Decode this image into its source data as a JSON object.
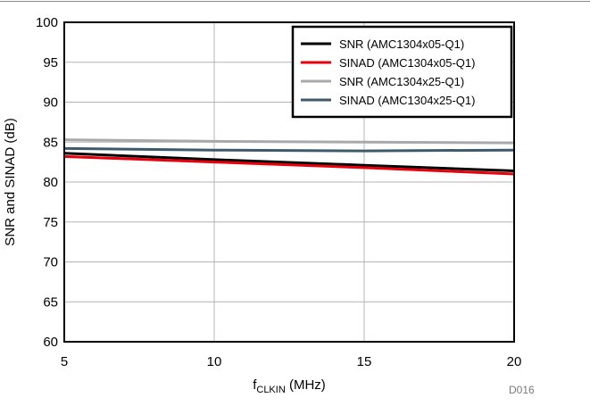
{
  "chart_data": {
    "type": "line",
    "xlabel_main": "f",
    "xlabel_sub": "CLKIN",
    "xlabel_unit": " (MHz)",
    "ylabel": "SNR and SINAD (dB)",
    "xlim": [
      5,
      20
    ],
    "ylim": [
      60,
      100
    ],
    "x_ticks": [
      5,
      10,
      15,
      20
    ],
    "y_ticks": [
      60,
      65,
      70,
      75,
      80,
      85,
      90,
      95,
      100
    ],
    "x_tick_labels": [
      "5",
      "10",
      "15",
      "20"
    ],
    "y_tick_labels": [
      "60",
      "65",
      "70",
      "75",
      "80",
      "85",
      "90",
      "95",
      "100"
    ],
    "grid": true,
    "legend_position": "top-right",
    "figure_id": "D016",
    "series": [
      {
        "name": "SNR (AMC1304x05-Q1)",
        "color": "#000000",
        "x": [
          5,
          10,
          15,
          20
        ],
        "y": [
          83.6,
          82.8,
          82.1,
          81.4
        ]
      },
      {
        "name": "SINAD (AMC1304x05-Q1)",
        "color": "#e8000b",
        "x": [
          5,
          10,
          15,
          20
        ],
        "y": [
          83.2,
          82.5,
          81.8,
          81.0
        ]
      },
      {
        "name": "SNR (AMC1304x25-Q1)",
        "color": "#a9a9a9",
        "x": [
          5,
          10,
          15,
          20
        ],
        "y": [
          85.3,
          85.1,
          85.0,
          84.9
        ]
      },
      {
        "name": "SINAD (AMC1304x25-Q1)",
        "color": "#3d5a6c",
        "x": [
          5,
          10,
          15,
          20
        ],
        "y": [
          84.2,
          84.0,
          83.9,
          84.0
        ]
      }
    ]
  }
}
